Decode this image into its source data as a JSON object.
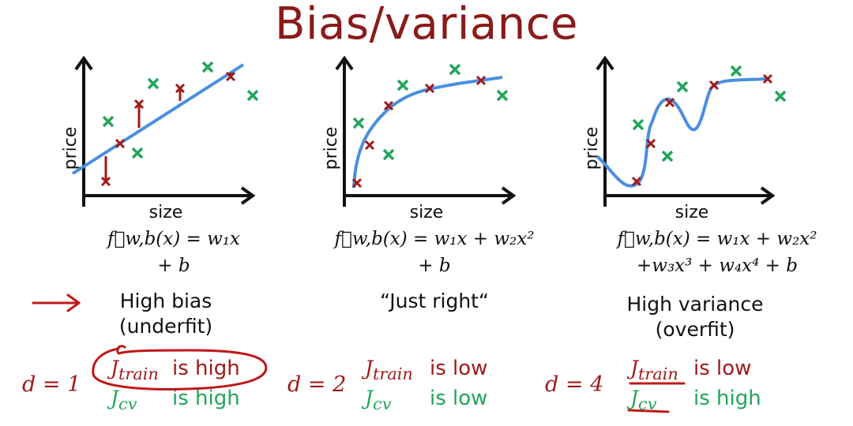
{
  "title": "Bias/variance",
  "colors": {
    "title": "#8b1a1a",
    "fit_curve": "#4a8fe0",
    "train_point": "#a01a1a",
    "cv_point": "#22a55a",
    "annotation": "#c01818"
  },
  "panels": [
    {
      "xlabel": "size",
      "ylabel": "price",
      "formula_line1": "f⃗w,b(x) = w₁x",
      "formula_line2": "+ b",
      "label_line1": "High bias",
      "label_line2": "(underfit)",
      "d_text": "d = 1",
      "j_train": "J",
      "j_train_sub": "train",
      "j_train_status": "is high",
      "j_cv": "J",
      "j_cv_sub": "cv",
      "j_cv_status": "is high"
    },
    {
      "xlabel": "size",
      "ylabel": "price",
      "formula_line1": "f⃗w,b(x) = w₁x + w₂x²",
      "formula_line2": "+ b",
      "label_line1": "“Just right“",
      "label_line2": "",
      "d_text": "d = 2",
      "j_train": "J",
      "j_train_sub": "train",
      "j_train_status": "is low",
      "j_cv": "J",
      "j_cv_sub": "cv",
      "j_cv_status": "is low"
    },
    {
      "xlabel": "size",
      "ylabel": "price",
      "formula_line1": "f⃗w,b(x) = w₁x + w₂x²",
      "formula_line2": "+w₃x³ + w₄x⁴ + b",
      "label_line1": "High variance",
      "label_line2": "(overfit)",
      "d_text": "d = 4",
      "j_train": "J",
      "j_train_sub": "train",
      "j_train_status": "is low",
      "j_cv": "J",
      "j_cv_sub": "cv",
      "j_cv_status": "is high"
    }
  ]
}
